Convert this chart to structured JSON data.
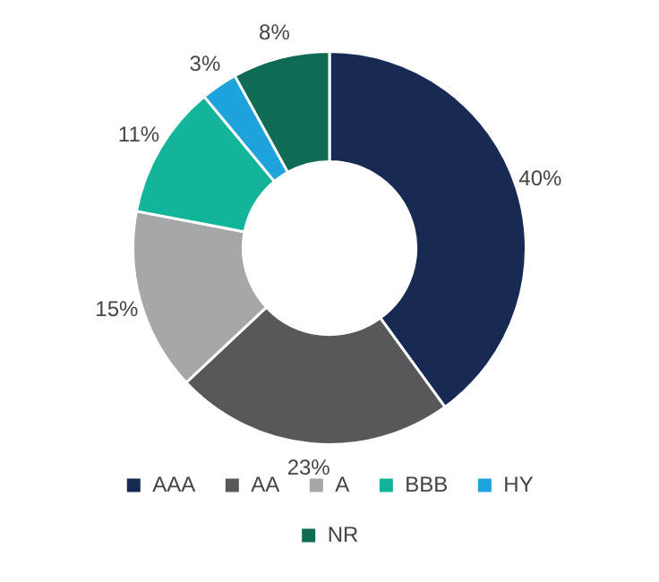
{
  "chart_data": {
    "type": "donut",
    "categories": [
      "AAA",
      "AA",
      "A",
      "BBB",
      "HY",
      "NR"
    ],
    "values": [
      40,
      23,
      15,
      11,
      3,
      8
    ],
    "colors": [
      "#172a54",
      "#58585a",
      "#a6a7a9",
      "#12b59a",
      "#1ea3dc",
      "#0f6b53"
    ],
    "value_labels": [
      "40%",
      "23%",
      "15%",
      "11%",
      "3%",
      "8%"
    ],
    "legend": "bottom"
  }
}
